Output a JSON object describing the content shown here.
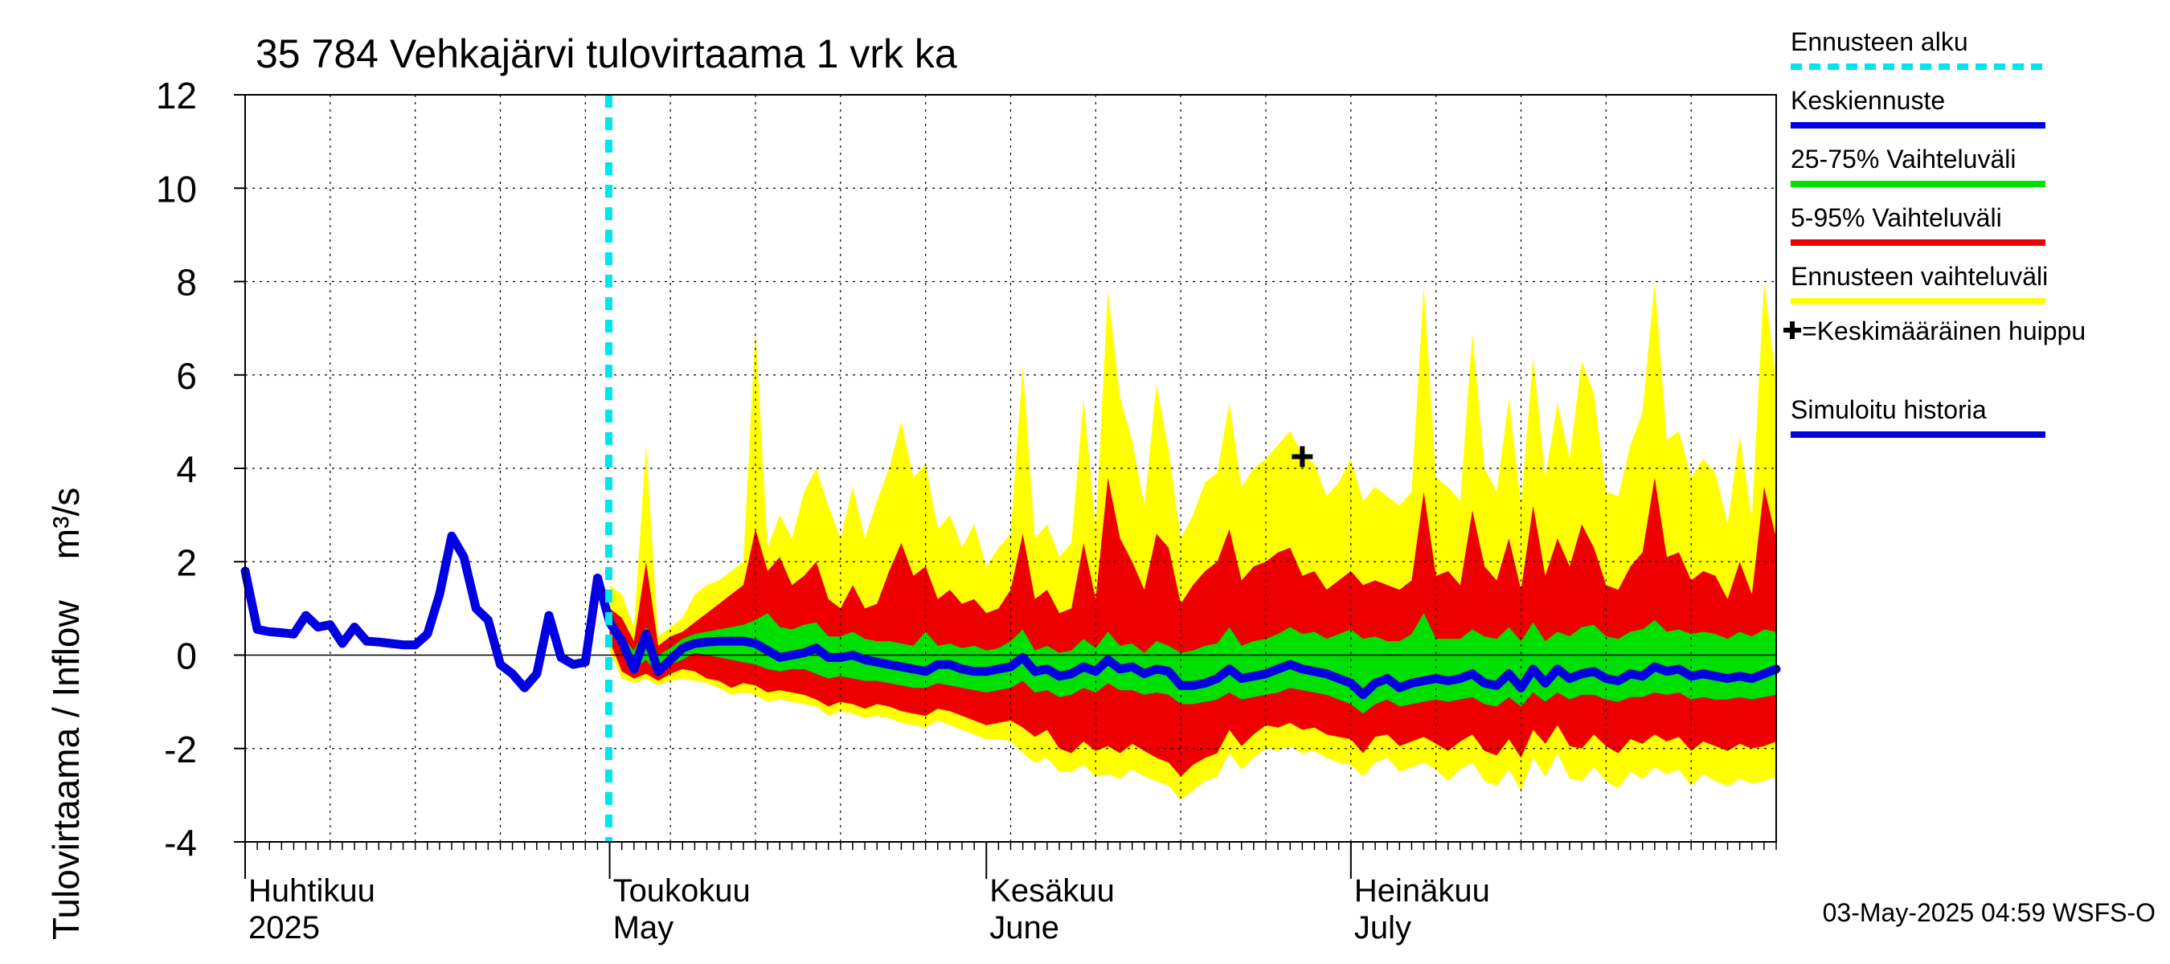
{
  "chart_data": {
    "type": "area",
    "title": "35 784 Vehkajärvi tulovirtaama 1 vrk ka",
    "ylabel": "Tulovirtaama / Inflow    m³/s",
    "ylim": [
      -4,
      12
    ],
    "y_ticks": [
      -4,
      -2,
      0,
      2,
      4,
      6,
      8,
      10,
      12
    ],
    "x_start": "2025-04-01",
    "x_end": "2025-08-05",
    "months": [
      {
        "start": "2025-04-01",
        "fi": "Huhtikuu",
        "en": "2025"
      },
      {
        "start": "2025-05-01",
        "fi": "Toukokuu",
        "en": "May"
      },
      {
        "start": "2025-06-01",
        "fi": "Kesäkuu",
        "en": "June"
      },
      {
        "start": "2025-07-01",
        "fi": "Heinäkuu",
        "en": "July"
      }
    ],
    "forecast_start": "2025-04-30",
    "timestamp": "03-May-2025 04:59 WSFS-O",
    "colors": {
      "forecast_start": "#00e5ee",
      "mean": "#0000e0",
      "iqr": "#00e000",
      "p5_95": "#ee0000",
      "full_range": "#ffff00",
      "history": "#0000e0",
      "peak": "#000000"
    },
    "legend": [
      {
        "label": "Ennusteen alku",
        "key": "forecast_start",
        "style": "dashed"
      },
      {
        "label": "Keskiennuste",
        "key": "mean",
        "style": "line"
      },
      {
        "label": "25-75% Vaihteluväli",
        "key": "iqr",
        "style": "line"
      },
      {
        "label": "5-95% Vaihteluväli",
        "key": "p5_95",
        "style": "line"
      },
      {
        "label": "Ennusteen vaihteluväli",
        "key": "full_range",
        "style": "line"
      },
      {
        "label": "=Keskimääräinen huippu",
        "key": "peak",
        "style": "marker"
      },
      {
        "label": "Simuloitu historia",
        "key": "history",
        "style": "line"
      }
    ],
    "history": {
      "name": "Simuloitu historia",
      "x": [
        "2025-04-01",
        "2025-04-02",
        "2025-04-03",
        "2025-04-04",
        "2025-04-05",
        "2025-04-06",
        "2025-04-07",
        "2025-04-08",
        "2025-04-09",
        "2025-04-10",
        "2025-04-11",
        "2025-04-12",
        "2025-04-13",
        "2025-04-14",
        "2025-04-15",
        "2025-04-16",
        "2025-04-17",
        "2025-04-18",
        "2025-04-19",
        "2025-04-20",
        "2025-04-21",
        "2025-04-22",
        "2025-04-23",
        "2025-04-24",
        "2025-04-25",
        "2025-04-26",
        "2025-04-27",
        "2025-04-28",
        "2025-04-29",
        "2025-04-30"
      ],
      "y": [
        1.8,
        0.55,
        0.5,
        0.48,
        0.45,
        0.85,
        0.6,
        0.65,
        0.25,
        0.6,
        0.3,
        0.28,
        0.25,
        0.22,
        0.22,
        0.45,
        1.3,
        2.55,
        2.1,
        1.0,
        0.75,
        -0.2,
        -0.4,
        -0.7,
        -0.4,
        0.85,
        -0.05,
        -0.2,
        -0.15,
        1.65
      ]
    },
    "peak_marker": {
      "x": "2025-06-27",
      "y": 4.25
    },
    "forecast": {
      "x": [
        "2025-05-01",
        "2025-05-02",
        "2025-05-03",
        "2025-05-04",
        "2025-05-05",
        "2025-05-06",
        "2025-05-07",
        "2025-05-08",
        "2025-05-09",
        "2025-05-10",
        "2025-05-11",
        "2025-05-12",
        "2025-05-13",
        "2025-05-14",
        "2025-05-15",
        "2025-05-16",
        "2025-05-17",
        "2025-05-18",
        "2025-05-19",
        "2025-05-20",
        "2025-05-21",
        "2025-05-22",
        "2025-05-23",
        "2025-05-24",
        "2025-05-25",
        "2025-05-26",
        "2025-05-27",
        "2025-05-28",
        "2025-05-29",
        "2025-05-30",
        "2025-05-31",
        "2025-06-01",
        "2025-06-02",
        "2025-06-03",
        "2025-06-04",
        "2025-06-05",
        "2025-06-06",
        "2025-06-07",
        "2025-06-08",
        "2025-06-09",
        "2025-06-10",
        "2025-06-11",
        "2025-06-12",
        "2025-06-13",
        "2025-06-14",
        "2025-06-15",
        "2025-06-16",
        "2025-06-17",
        "2025-06-18",
        "2025-06-19",
        "2025-06-20",
        "2025-06-21",
        "2025-06-22",
        "2025-06-23",
        "2025-06-24",
        "2025-06-25",
        "2025-06-26",
        "2025-06-27",
        "2025-06-28",
        "2025-06-29",
        "2025-06-30",
        "2025-07-01",
        "2025-07-02",
        "2025-07-03",
        "2025-07-04",
        "2025-07-05",
        "2025-07-06",
        "2025-07-07",
        "2025-07-08",
        "2025-07-09",
        "2025-07-10",
        "2025-07-11",
        "2025-07-12",
        "2025-07-13",
        "2025-07-14",
        "2025-07-15",
        "2025-07-16",
        "2025-07-17",
        "2025-07-18",
        "2025-07-19",
        "2025-07-20",
        "2025-07-21",
        "2025-07-22",
        "2025-07-23",
        "2025-07-24",
        "2025-07-25",
        "2025-07-26",
        "2025-07-27",
        "2025-07-28",
        "2025-07-29",
        "2025-07-30",
        "2025-07-31",
        "2025-08-01",
        "2025-08-02",
        "2025-08-03",
        "2025-08-04",
        "2025-08-05"
      ],
      "mean": [
        0.7,
        0.3,
        -0.3,
        0.45,
        -0.35,
        -0.1,
        0.15,
        0.25,
        0.28,
        0.3,
        0.3,
        0.3,
        0.25,
        0.1,
        -0.05,
        0.0,
        0.05,
        0.15,
        -0.05,
        -0.05,
        0.0,
        -0.1,
        -0.15,
        -0.2,
        -0.25,
        -0.3,
        -0.35,
        -0.2,
        -0.2,
        -0.3,
        -0.35,
        -0.35,
        -0.3,
        -0.25,
        -0.05,
        -0.35,
        -0.3,
        -0.45,
        -0.4,
        -0.25,
        -0.35,
        -0.1,
        -0.3,
        -0.25,
        -0.4,
        -0.3,
        -0.35,
        -0.65,
        -0.65,
        -0.6,
        -0.5,
        -0.3,
        -0.5,
        -0.45,
        -0.4,
        -0.3,
        -0.2,
        -0.3,
        -0.35,
        -0.4,
        -0.5,
        -0.6,
        -0.85,
        -0.6,
        -0.5,
        -0.7,
        -0.6,
        -0.55,
        -0.5,
        -0.55,
        -0.5,
        -0.4,
        -0.6,
        -0.65,
        -0.4,
        -0.7,
        -0.3,
        -0.6,
        -0.3,
        -0.5,
        -0.4,
        -0.35,
        -0.5,
        -0.55,
        -0.4,
        -0.45,
        -0.25,
        -0.35,
        -0.3,
        -0.45,
        -0.4,
        -0.45,
        -0.5,
        -0.45,
        -0.5,
        -0.4,
        -0.3
      ],
      "p25": [
        0.6,
        0.1,
        -0.3,
        -0.1,
        -0.4,
        -0.2,
        -0.1,
        0.05,
        0.0,
        -0.05,
        -0.1,
        -0.15,
        -0.2,
        -0.3,
        -0.35,
        -0.3,
        -0.3,
        -0.4,
        -0.5,
        -0.45,
        -0.5,
        -0.55,
        -0.55,
        -0.6,
        -0.65,
        -0.7,
        -0.7,
        -0.6,
        -0.65,
        -0.7,
        -0.75,
        -0.8,
        -0.75,
        -0.7,
        -0.55,
        -0.8,
        -0.75,
        -0.9,
        -0.85,
        -0.7,
        -0.8,
        -0.6,
        -0.75,
        -0.75,
        -0.85,
        -0.8,
        -0.85,
        -1.05,
        -1.05,
        -1.0,
        -0.95,
        -0.8,
        -0.95,
        -0.9,
        -0.85,
        -0.8,
        -0.7,
        -0.75,
        -0.8,
        -0.85,
        -0.95,
        -1.05,
        -1.25,
        -1.05,
        -0.95,
        -1.1,
        -1.05,
        -1.0,
        -0.95,
        -1.0,
        -0.95,
        -0.9,
        -1.05,
        -1.1,
        -0.9,
        -1.1,
        -0.8,
        -1.0,
        -0.8,
        -0.95,
        -0.85,
        -0.85,
        -0.95,
        -1.0,
        -0.9,
        -0.9,
        -0.8,
        -0.85,
        -0.8,
        -0.95,
        -0.9,
        -0.95,
        -0.95,
        -0.9,
        -0.95,
        -0.9,
        -0.85
      ],
      "p75": [
        0.8,
        0.4,
        0.1,
        0.6,
        0.0,
        0.15,
        0.35,
        0.45,
        0.5,
        0.55,
        0.6,
        0.65,
        0.75,
        0.9,
        0.6,
        0.55,
        0.65,
        0.7,
        0.4,
        0.4,
        0.5,
        0.35,
        0.3,
        0.3,
        0.25,
        0.2,
        0.5,
        0.2,
        0.25,
        0.15,
        0.2,
        0.1,
        0.15,
        0.3,
        0.55,
        0.1,
        0.2,
        0.05,
        0.1,
        0.35,
        0.15,
        0.5,
        0.2,
        0.25,
        0.05,
        0.3,
        0.2,
        0.05,
        0.1,
        0.2,
        0.25,
        0.6,
        0.2,
        0.3,
        0.35,
        0.45,
        0.6,
        0.45,
        0.5,
        0.35,
        0.45,
        0.55,
        0.35,
        0.4,
        0.3,
        0.3,
        0.45,
        0.9,
        0.35,
        0.35,
        0.35,
        0.55,
        0.4,
        0.35,
        0.6,
        0.3,
        0.7,
        0.3,
        0.5,
        0.4,
        0.6,
        0.65,
        0.4,
        0.35,
        0.5,
        0.55,
        0.75,
        0.5,
        0.55,
        0.45,
        0.5,
        0.45,
        0.35,
        0.5,
        0.4,
        0.55,
        0.5
      ],
      "p5": [
        0.3,
        -0.35,
        -0.5,
        -0.4,
        -0.55,
        -0.4,
        -0.3,
        -0.35,
        -0.5,
        -0.55,
        -0.7,
        -0.6,
        -0.65,
        -0.8,
        -0.75,
        -0.8,
        -0.85,
        -0.95,
        -1.1,
        -1.0,
        -1.05,
        -1.15,
        -1.05,
        -1.1,
        -1.2,
        -1.25,
        -1.3,
        -1.15,
        -1.2,
        -1.3,
        -1.4,
        -1.5,
        -1.45,
        -1.4,
        -1.55,
        -1.75,
        -1.6,
        -2.0,
        -2.1,
        -1.85,
        -2.05,
        -1.95,
        -2.1,
        -1.9,
        -2.05,
        -2.2,
        -2.3,
        -2.6,
        -2.35,
        -2.2,
        -2.1,
        -1.6,
        -1.95,
        -1.7,
        -1.5,
        -1.55,
        -1.45,
        -1.6,
        -1.55,
        -1.7,
        -1.75,
        -1.8,
        -2.1,
        -1.75,
        -1.7,
        -1.95,
        -1.85,
        -1.75,
        -1.9,
        -2.05,
        -1.85,
        -1.7,
        -2.05,
        -2.15,
        -1.8,
        -2.2,
        -1.6,
        -1.9,
        -1.5,
        -1.95,
        -2.0,
        -1.7,
        -1.95,
        -2.1,
        -1.8,
        -1.9,
        -1.7,
        -1.85,
        -1.75,
        -2.05,
        -1.85,
        -1.95,
        -2.05,
        -1.9,
        -2.0,
        -1.95,
        -1.85
      ],
      "p95": [
        1.0,
        0.8,
        0.3,
        2.0,
        0.2,
        0.4,
        0.5,
        0.7,
        0.9,
        1.1,
        1.3,
        1.5,
        2.7,
        1.8,
        2.1,
        1.5,
        1.7,
        2.0,
        1.2,
        1.0,
        1.5,
        1.0,
        1.1,
        1.8,
        2.4,
        1.7,
        1.9,
        1.2,
        1.4,
        1.1,
        1.2,
        0.9,
        1.0,
        1.4,
        2.6,
        1.2,
        1.4,
        0.9,
        1.0,
        2.4,
        1.2,
        3.8,
        2.5,
        2.0,
        1.4,
        2.6,
        2.3,
        1.1,
        1.5,
        1.8,
        2.0,
        2.7,
        1.6,
        1.9,
        2.0,
        2.2,
        2.3,
        1.7,
        1.8,
        1.4,
        1.6,
        1.8,
        1.5,
        1.6,
        1.5,
        1.4,
        1.6,
        3.5,
        1.7,
        1.8,
        1.5,
        3.1,
        1.9,
        1.6,
        2.5,
        1.4,
        3.2,
        1.7,
        2.5,
        1.9,
        2.8,
        2.3,
        1.5,
        1.4,
        1.9,
        2.2,
        3.8,
        2.1,
        2.2,
        1.6,
        1.8,
        1.7,
        1.2,
        2.0,
        1.3,
        3.6,
        2.5
      ],
      "min": [
        0.1,
        -0.5,
        -0.6,
        -0.5,
        -0.65,
        -0.55,
        -0.5,
        -0.55,
        -0.6,
        -0.7,
        -0.85,
        -0.8,
        -0.85,
        -1.0,
        -0.95,
        -1.0,
        -1.05,
        -1.1,
        -1.3,
        -1.2,
        -1.25,
        -1.35,
        -1.3,
        -1.35,
        -1.45,
        -1.5,
        -1.55,
        -1.4,
        -1.5,
        -1.6,
        -1.7,
        -1.8,
        -1.8,
        -1.85,
        -2.1,
        -2.3,
        -2.2,
        -2.5,
        -2.5,
        -2.35,
        -2.6,
        -2.55,
        -2.65,
        -2.45,
        -2.6,
        -2.7,
        -2.8,
        -3.1,
        -2.9,
        -2.7,
        -2.6,
        -2.1,
        -2.45,
        -2.2,
        -2.0,
        -2.05,
        -1.95,
        -2.1,
        -2.05,
        -2.2,
        -2.3,
        -2.35,
        -2.6,
        -2.3,
        -2.2,
        -2.5,
        -2.4,
        -2.3,
        -2.45,
        -2.7,
        -2.45,
        -2.3,
        -2.7,
        -2.8,
        -2.45,
        -2.9,
        -2.2,
        -2.6,
        -2.1,
        -2.65,
        -2.7,
        -2.4,
        -2.7,
        -2.85,
        -2.5,
        -2.65,
        -2.4,
        -2.55,
        -2.45,
        -2.8,
        -2.55,
        -2.7,
        -2.8,
        -2.65,
        -2.75,
        -2.7,
        -2.6
      ],
      "max": [
        1.5,
        1.3,
        0.6,
        4.5,
        0.4,
        0.6,
        0.8,
        1.3,
        1.5,
        1.6,
        1.8,
        2.0,
        7.0,
        2.3,
        3.0,
        2.5,
        3.5,
        4.0,
        3.2,
        2.5,
        3.6,
        2.5,
        3.3,
        4.0,
        5.0,
        3.8,
        4.1,
        2.7,
        3.0,
        2.3,
        2.8,
        1.9,
        2.3,
        2.6,
        6.2,
        2.5,
        2.8,
        2.1,
        2.4,
        5.5,
        2.7,
        7.8,
        5.5,
        4.6,
        3.2,
        5.8,
        4.4,
        2.5,
        3.0,
        3.7,
        3.9,
        5.4,
        3.6,
        4.0,
        4.2,
        4.5,
        4.8,
        4.3,
        4.1,
        3.4,
        3.7,
        4.2,
        3.3,
        3.6,
        3.4,
        3.2,
        3.5,
        7.9,
        3.8,
        3.6,
        3.3,
        6.9,
        4.0,
        3.5,
        5.5,
        3.2,
        6.4,
        3.8,
        5.4,
        4.2,
        6.3,
        5.6,
        3.5,
        3.4,
        4.5,
        5.2,
        8.0,
        4.6,
        4.8,
        3.8,
        4.2,
        3.9,
        2.8,
        4.7,
        2.9,
        8.0,
        5.9
      ]
    }
  }
}
